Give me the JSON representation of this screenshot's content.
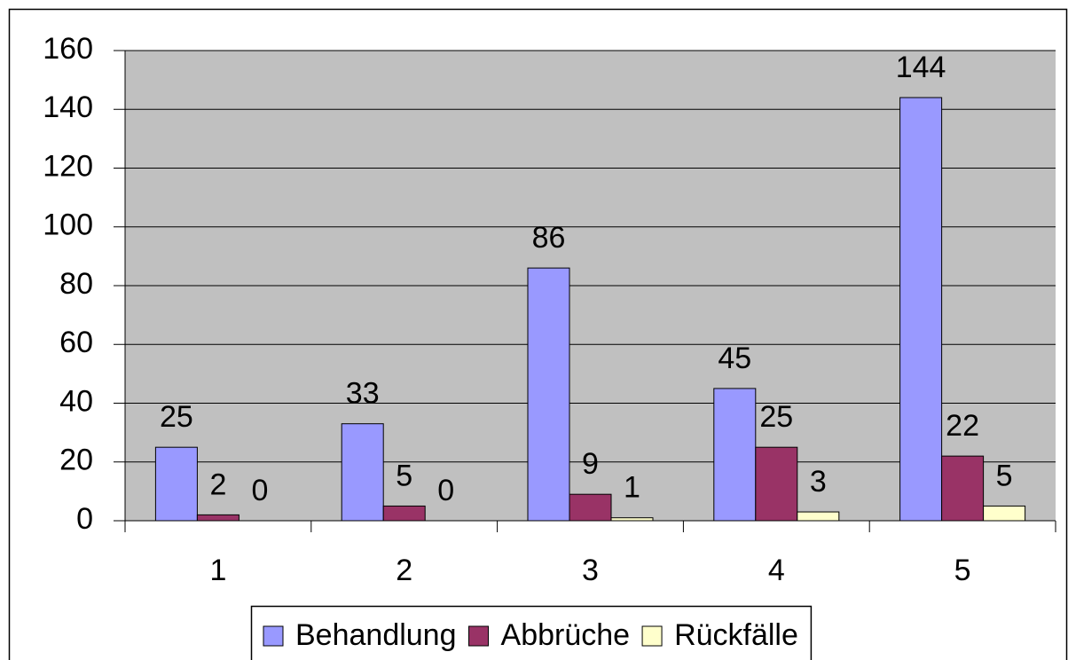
{
  "chart_data": {
    "type": "bar",
    "categories": [
      "1",
      "2",
      "3",
      "4",
      "5"
    ],
    "series": [
      {
        "name": "Behandlung",
        "color": "#9999ff",
        "values": [
          25,
          33,
          86,
          45,
          144
        ]
      },
      {
        "name": "Abbrüche",
        "color": "#993366",
        "values": [
          2,
          5,
          9,
          25,
          22
        ]
      },
      {
        "name": "Rückfälle",
        "color": "#ffffcc",
        "values": [
          0,
          0,
          1,
          3,
          5
        ]
      }
    ],
    "ylim": [
      0,
      160
    ],
    "yticks": [
      0,
      20,
      40,
      60,
      80,
      100,
      120,
      140,
      160
    ],
    "grid": true,
    "legend": "bottom"
  }
}
